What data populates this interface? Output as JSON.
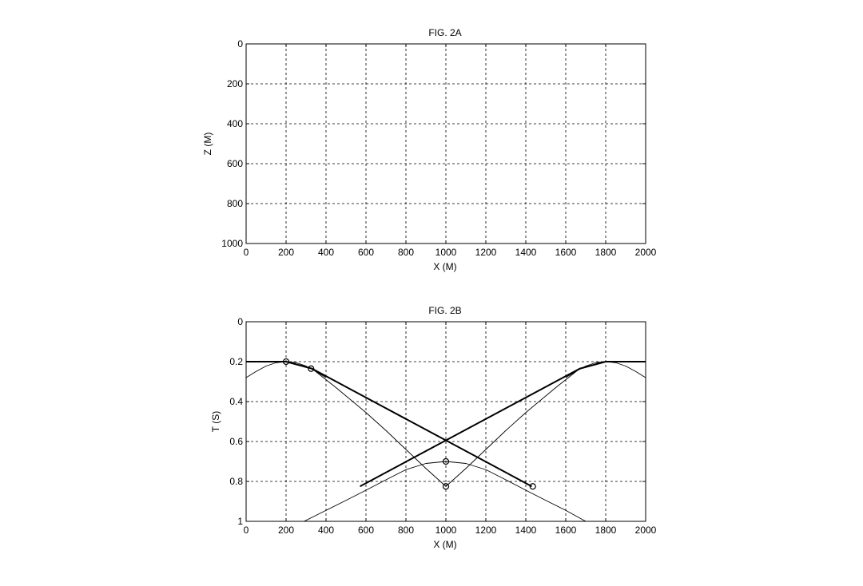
{
  "chart_data": [
    {
      "type": "line",
      "title": "FIG. 2A",
      "xlabel": "X (M)",
      "ylabel": "Z (M)",
      "xlim": [
        0,
        2000
      ],
      "ylim": [
        0,
        1000
      ],
      "y_reversed": true,
      "grid": true,
      "x_ticks": [
        "0",
        "200",
        "400",
        "600",
        "800",
        "1000",
        "1200",
        "1400",
        "1600",
        "1800",
        "2000"
      ],
      "y_ticks": [
        "0",
        "200",
        "400",
        "600",
        "800",
        "1000"
      ],
      "series": []
    },
    {
      "type": "line",
      "title": "FIG. 2B",
      "xlabel": "X (M)",
      "ylabel": "T (S)",
      "xlim": [
        0,
        2000
      ],
      "ylim": [
        0,
        1
      ],
      "y_reversed": true,
      "grid": true,
      "x_ticks": [
        "0",
        "200",
        "400",
        "600",
        "800",
        "1000",
        "1200",
        "1400",
        "1600",
        "1800",
        "2000"
      ],
      "y_ticks": [
        "0",
        "0.2",
        "0.4",
        "0.6",
        "0.8",
        "1"
      ],
      "series": [
        {
          "style": "thin",
          "x": [
            0,
            50,
            100,
            150,
            200,
            250,
            300,
            350,
            400
          ],
          "y": [
            0.28,
            0.249,
            0.222,
            0.205,
            0.2,
            0.205,
            0.222,
            0.249,
            0.28
          ]
        },
        {
          "style": "thin",
          "x": [
            1600,
            1650,
            1700,
            1750,
            1800,
            1850,
            1900,
            1950,
            2000
          ],
          "y": [
            0.28,
            0.249,
            0.222,
            0.205,
            0.2,
            0.205,
            0.222,
            0.249,
            0.28
          ]
        },
        {
          "style": "thin",
          "x": [
            290,
            400,
            500,
            600,
            700,
            800,
            900,
            1000,
            1100,
            1200,
            1300,
            1400,
            1500,
            1600,
            1700,
            1710
          ],
          "y": [
            1.0,
            0.945,
            0.895,
            0.844,
            0.792,
            0.741,
            0.71,
            0.7,
            0.71,
            0.741,
            0.792,
            0.844,
            0.895,
            0.945,
            1.0,
            1.0
          ]
        },
        {
          "style": "thin",
          "x": [
            330,
            450,
            600,
            700,
            800,
            900,
            1000
          ],
          "y": [
            0.235,
            0.33,
            0.455,
            0.545,
            0.64,
            0.735,
            0.825
          ]
        },
        {
          "style": "thin",
          "x": [
            1000,
            1100,
            1200,
            1300,
            1400,
            1550,
            1670
          ],
          "y": [
            0.825,
            0.735,
            0.64,
            0.545,
            0.455,
            0.33,
            0.235
          ]
        },
        {
          "style": "thick",
          "x": [
            0,
            200,
            330,
            1430
          ],
          "y": [
            0.2,
            0.2,
            0.235,
            0.825
          ]
        },
        {
          "style": "thick",
          "x": [
            2000,
            1800,
            1670,
            570
          ],
          "y": [
            0.2,
            0.2,
            0.235,
            0.825
          ]
        },
        {
          "style": "markers",
          "x": [
            200,
            325,
            1000,
            1000,
            1435
          ],
          "y": [
            0.2,
            0.235,
            0.7,
            0.825,
            0.825
          ]
        }
      ]
    }
  ]
}
